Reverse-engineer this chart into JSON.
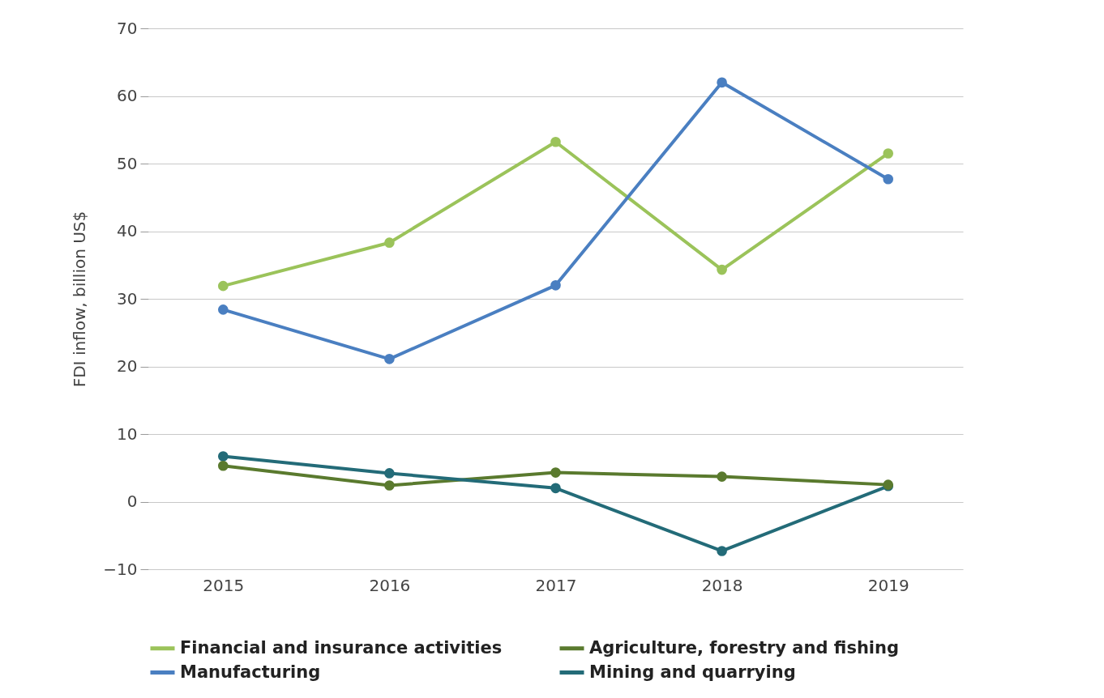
{
  "chart_data": {
    "type": "line",
    "ylabel": "FDI  inflow, billion US$",
    "categories": [
      "2015",
      "2016",
      "2017",
      "2018",
      "2019"
    ],
    "series": [
      {
        "name": "Financial and insurance activities",
        "color": "#9bc35a",
        "values": [
          31.9,
          38.3,
          53.2,
          34.3,
          51.5
        ]
      },
      {
        "name": "Agriculture, forestry and fishing",
        "color": "#5a7a2e",
        "values": [
          5.3,
          2.4,
          4.3,
          3.7,
          2.5
        ]
      },
      {
        "name": "Manufacturing",
        "color": "#4a7fc1",
        "values": [
          28.4,
          21.1,
          32.0,
          62.0,
          47.7
        ]
      },
      {
        "name": "Mining and quarrying",
        "color": "#236b78",
        "values": [
          6.7,
          4.2,
          2.0,
          -7.3,
          2.3
        ]
      }
    ],
    "ylim": [
      -10,
      70
    ],
    "yticks": [
      -10,
      0,
      10,
      20,
      30,
      40,
      50,
      60,
      70
    ],
    "grid": "y",
    "legend": "bottom",
    "marker": "circle",
    "line_style": "solid"
  }
}
